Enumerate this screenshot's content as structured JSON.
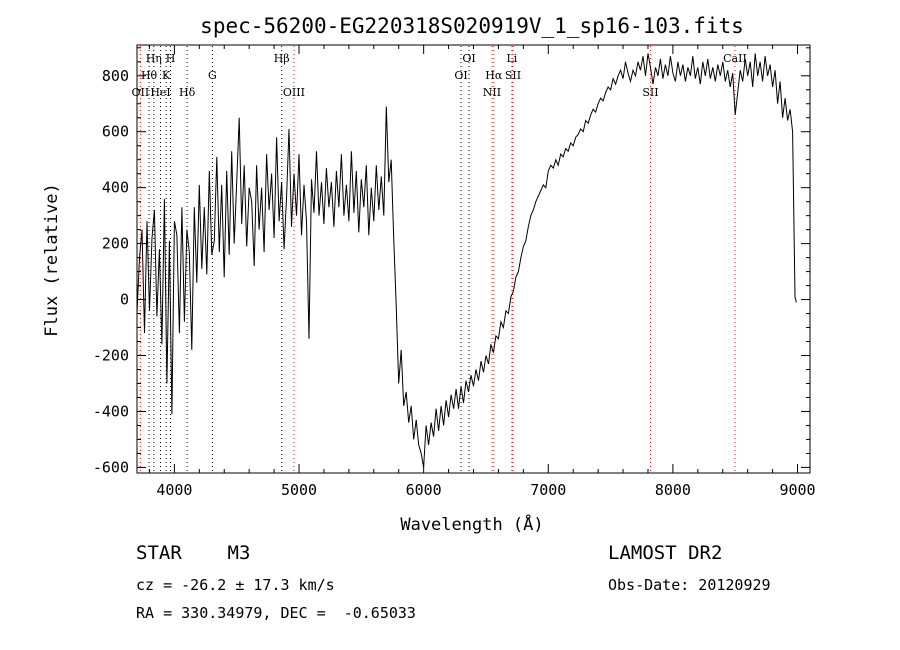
{
  "chart_data": {
    "type": "line",
    "title": "spec-56200-EG220318S020919V_1_sp16-103.fits",
    "xlabel": "Wavelength (Å)",
    "ylabel": "Flux (relative)",
    "xlim": [
      3700,
      9100
    ],
    "ylim": [
      -620,
      910
    ],
    "x_ticks": [
      4000,
      5000,
      6000,
      7000,
      8000,
      9000
    ],
    "y_ticks": [
      -600,
      -400,
      -200,
      0,
      200,
      400,
      600,
      800
    ],
    "grid": false,
    "series": [
      {
        "color": "#000000",
        "points": [
          [
            3700,
            -50
          ],
          [
            3720,
            150
          ],
          [
            3740,
            250
          ],
          [
            3760,
            -120
          ],
          [
            3780,
            280
          ],
          [
            3800,
            -40
          ],
          [
            3820,
            220
          ],
          [
            3840,
            320
          ],
          [
            3860,
            -60
          ],
          [
            3880,
            180
          ],
          [
            3900,
            -160
          ],
          [
            3920,
            360
          ],
          [
            3940,
            -300
          ],
          [
            3960,
            210
          ],
          [
            3980,
            -410
          ],
          [
            4000,
            280
          ],
          [
            4020,
            230
          ],
          [
            4040,
            -120
          ],
          [
            4060,
            330
          ],
          [
            4080,
            -80
          ],
          [
            4100,
            250
          ],
          [
            4120,
            170
          ],
          [
            4140,
            -180
          ],
          [
            4160,
            330
          ],
          [
            4180,
            60
          ],
          [
            4200,
            410
          ],
          [
            4220,
            110
          ],
          [
            4240,
            330
          ],
          [
            4260,
            90
          ],
          [
            4280,
            460
          ],
          [
            4300,
            160
          ],
          [
            4320,
            210
          ],
          [
            4340,
            510
          ],
          [
            4360,
            170
          ],
          [
            4380,
            410
          ],
          [
            4400,
            80
          ],
          [
            4420,
            460
          ],
          [
            4440,
            160
          ],
          [
            4460,
            530
          ],
          [
            4480,
            200
          ],
          [
            4500,
            420
          ],
          [
            4520,
            650
          ],
          [
            4540,
            270
          ],
          [
            4560,
            480
          ],
          [
            4580,
            190
          ],
          [
            4600,
            400
          ],
          [
            4620,
            350
          ],
          [
            4640,
            120
          ],
          [
            4660,
            480
          ],
          [
            4680,
            250
          ],
          [
            4700,
            400
          ],
          [
            4720,
            170
          ],
          [
            4740,
            520
          ],
          [
            4760,
            320
          ],
          [
            4780,
            450
          ],
          [
            4800,
            220
          ],
          [
            4820,
            580
          ],
          [
            4840,
            280
          ],
          [
            4860,
            420
          ],
          [
            4880,
            180
          ],
          [
            4900,
            370
          ],
          [
            4920,
            610
          ],
          [
            4940,
            260
          ],
          [
            4960,
            450
          ],
          [
            4980,
            300
          ],
          [
            5000,
            520
          ],
          [
            5020,
            230
          ],
          [
            5040,
            410
          ],
          [
            5060,
            280
          ],
          [
            5080,
            -140
          ],
          [
            5100,
            430
          ],
          [
            5120,
            310
          ],
          [
            5140,
            530
          ],
          [
            5160,
            300
          ],
          [
            5180,
            420
          ],
          [
            5200,
            270
          ],
          [
            5220,
            470
          ],
          [
            5240,
            330
          ],
          [
            5260,
            420
          ],
          [
            5280,
            260
          ],
          [
            5300,
            460
          ],
          [
            5320,
            330
          ],
          [
            5340,
            520
          ],
          [
            5360,
            300
          ],
          [
            5380,
            410
          ],
          [
            5400,
            280
          ],
          [
            5420,
            530
          ],
          [
            5440,
            310
          ],
          [
            5460,
            460
          ],
          [
            5480,
            240
          ],
          [
            5500,
            430
          ],
          [
            5520,
            330
          ],
          [
            5540,
            480
          ],
          [
            5560,
            230
          ],
          [
            5580,
            400
          ],
          [
            5600,
            280
          ],
          [
            5620,
            480
          ],
          [
            5640,
            320
          ],
          [
            5660,
            440
          ],
          [
            5680,
            300
          ],
          [
            5700,
            690
          ],
          [
            5720,
            420
          ],
          [
            5740,
            500
          ],
          [
            5760,
            220
          ],
          [
            5780,
            -20
          ],
          [
            5800,
            -300
          ],
          [
            5820,
            -180
          ],
          [
            5840,
            -380
          ],
          [
            5860,
            -330
          ],
          [
            5880,
            -440
          ],
          [
            5900,
            -380
          ],
          [
            5920,
            -500
          ],
          [
            5940,
            -430
          ],
          [
            5960,
            -520
          ],
          [
            5980,
            -550
          ],
          [
            6000,
            -600
          ],
          [
            6020,
            -450
          ],
          [
            6040,
            -520
          ],
          [
            6060,
            -440
          ],
          [
            6080,
            -490
          ],
          [
            6100,
            -390
          ],
          [
            6120,
            -470
          ],
          [
            6140,
            -380
          ],
          [
            6160,
            -450
          ],
          [
            6180,
            -360
          ],
          [
            6200,
            -420
          ],
          [
            6220,
            -340
          ],
          [
            6240,
            -390
          ],
          [
            6260,
            -320
          ],
          [
            6280,
            -390
          ],
          [
            6300,
            -310
          ],
          [
            6320,
            -370
          ],
          [
            6340,
            -290
          ],
          [
            6360,
            -330
          ],
          [
            6380,
            -270
          ],
          [
            6400,
            -310
          ],
          [
            6420,
            -250
          ],
          [
            6440,
            -290
          ],
          [
            6460,
            -220
          ],
          [
            6480,
            -260
          ],
          [
            6500,
            -200
          ],
          [
            6520,
            -230
          ],
          [
            6540,
            -160
          ],
          [
            6560,
            -190
          ],
          [
            6580,
            -130
          ],
          [
            6600,
            -140
          ],
          [
            6620,
            -80
          ],
          [
            6640,
            -100
          ],
          [
            6660,
            -40
          ],
          [
            6680,
            -50
          ],
          [
            6700,
            10
          ],
          [
            6720,
            30
          ],
          [
            6740,
            80
          ],
          [
            6760,
            100
          ],
          [
            6780,
            150
          ],
          [
            6800,
            190
          ],
          [
            6820,
            210
          ],
          [
            6840,
            260
          ],
          [
            6860,
            300
          ],
          [
            6880,
            320
          ],
          [
            6900,
            350
          ],
          [
            6920,
            370
          ],
          [
            6940,
            390
          ],
          [
            6960,
            410
          ],
          [
            6980,
            400
          ],
          [
            7000,
            460
          ],
          [
            7020,
            480
          ],
          [
            7040,
            470
          ],
          [
            7060,
            500
          ],
          [
            7080,
            480
          ],
          [
            7100,
            520
          ],
          [
            7120,
            510
          ],
          [
            7140,
            540
          ],
          [
            7160,
            530
          ],
          [
            7180,
            560
          ],
          [
            7200,
            550
          ],
          [
            7220,
            580
          ],
          [
            7240,
            590
          ],
          [
            7260,
            610
          ],
          [
            7280,
            600
          ],
          [
            7300,
            640
          ],
          [
            7320,
            630
          ],
          [
            7340,
            660
          ],
          [
            7360,
            680
          ],
          [
            7380,
            670
          ],
          [
            7400,
            700
          ],
          [
            7420,
            720
          ],
          [
            7440,
            710
          ],
          [
            7460,
            740
          ],
          [
            7480,
            760
          ],
          [
            7500,
            750
          ],
          [
            7520,
            790
          ],
          [
            7540,
            770
          ],
          [
            7560,
            800
          ],
          [
            7580,
            820
          ],
          [
            7600,
            790
          ],
          [
            7620,
            850
          ],
          [
            7640,
            810
          ],
          [
            7660,
            780
          ],
          [
            7680,
            820
          ],
          [
            7700,
            800
          ],
          [
            7720,
            850
          ],
          [
            7740,
            820
          ],
          [
            7760,
            870
          ],
          [
            7780,
            800
          ],
          [
            7800,
            880
          ],
          [
            7820,
            830
          ],
          [
            7840,
            770
          ],
          [
            7860,
            830
          ],
          [
            7880,
            800
          ],
          [
            7900,
            860
          ],
          [
            7920,
            790
          ],
          [
            7940,
            840
          ],
          [
            7960,
            800
          ],
          [
            7980,
            870
          ],
          [
            8000,
            810
          ],
          [
            8020,
            780
          ],
          [
            8040,
            850
          ],
          [
            8060,
            800
          ],
          [
            8080,
            840
          ],
          [
            8100,
            780
          ],
          [
            8120,
            830
          ],
          [
            8140,
            800
          ],
          [
            8160,
            870
          ],
          [
            8180,
            790
          ],
          [
            8200,
            830
          ],
          [
            8220,
            770
          ],
          [
            8240,
            850
          ],
          [
            8260,
            800
          ],
          [
            8280,
            860
          ],
          [
            8300,
            790
          ],
          [
            8320,
            830
          ],
          [
            8340,
            780
          ],
          [
            8360,
            840
          ],
          [
            8380,
            800
          ],
          [
            8400,
            850
          ],
          [
            8420,
            780
          ],
          [
            8440,
            820
          ],
          [
            8460,
            760
          ],
          [
            8480,
            810
          ],
          [
            8500,
            660
          ],
          [
            8520,
            740
          ],
          [
            8540,
            820
          ],
          [
            8560,
            780
          ],
          [
            8580,
            860
          ],
          [
            8600,
            800
          ],
          [
            8620,
            850
          ],
          [
            8640,
            760
          ],
          [
            8660,
            880
          ],
          [
            8680,
            800
          ],
          [
            8700,
            850
          ],
          [
            8720,
            780
          ],
          [
            8740,
            870
          ],
          [
            8760,
            800
          ],
          [
            8780,
            840
          ],
          [
            8800,
            760
          ],
          [
            8820,
            820
          ],
          [
            8840,
            700
          ],
          [
            8860,
            780
          ],
          [
            8880,
            650
          ],
          [
            8900,
            720
          ],
          [
            8920,
            640
          ],
          [
            8940,
            680
          ],
          [
            8960,
            600
          ],
          [
            8980,
            10
          ],
          [
            8990,
            -10
          ]
        ]
      }
    ],
    "line_markers": [
      {
        "label": "OII",
        "x": 3727,
        "row": 3
      },
      {
        "label": "Hθ",
        "x": 3797,
        "row": 2
      },
      {
        "label": "Hη",
        "x": 3835,
        "row": 1
      },
      {
        "label": "HeI",
        "x": 3889,
        "row": 3
      },
      {
        "label": "K",
        "x": 3934,
        "row": 2
      },
      {
        "label": "H",
        "x": 3969,
        "row": 1
      },
      {
        "label": "Hδ",
        "x": 4102,
        "row": 3
      },
      {
        "label": "G",
        "x": 4305,
        "row": 2
      },
      {
        "label": "Hβ",
        "x": 4861,
        "row": 1
      },
      {
        "label": "OIII",
        "x": 4959,
        "row": 3
      },
      {
        "label": "OI",
        "x": 6300,
        "row": 2
      },
      {
        "label": "OI",
        "x": 6364,
        "row": 1
      },
      {
        "label": "NII",
        "x": 6548,
        "row": 3
      },
      {
        "label": "Hα",
        "x": 6563,
        "row": 2
      },
      {
        "label": "Li",
        "x": 6708,
        "row": 1
      },
      {
        "label": "SII",
        "x": 6717,
        "row": 2
      },
      {
        "label": "SII",
        "x": 7820,
        "row": 3
      },
      {
        "label": "CaII",
        "x": 8498,
        "row": 1
      }
    ],
    "marker_colors": {
      "red": "#d11a1a",
      "black": "#000000"
    },
    "red_marker_labels": [
      "OII",
      "OIII",
      "NII",
      "Hα",
      "SII",
      "CaII",
      "Li"
    ]
  },
  "info": {
    "class_line": "STAR    M3",
    "survey": "LAMOST DR2",
    "cz": "cz = -26.2 ± 17.3 km/s",
    "obs_date": "Obs-Date: 20120929",
    "radec": "RA = 330.34979, DEC =  -0.65033"
  }
}
